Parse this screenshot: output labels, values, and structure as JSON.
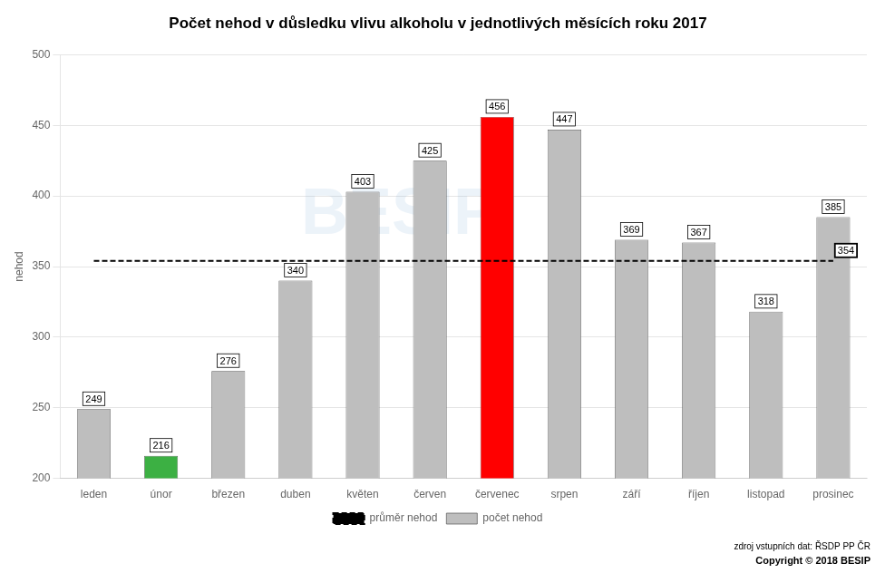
{
  "chart_data": {
    "type": "bar",
    "title": "Počet nehod v důsledku vlivu alkoholu v jednotlivých měsících roku 2017",
    "categories": [
      "leden",
      "únor",
      "březen",
      "duben",
      "květen",
      "červen",
      "červenec",
      "srpen",
      "září",
      "říjen",
      "listopad",
      "prosinec"
    ],
    "series": [
      {
        "name": "počet nehod",
        "type": "bar",
        "colors": [
          "#bebebe",
          "#3cb043",
          "#bebebe",
          "#bebebe",
          "#bebebe",
          "#bebebe",
          "#ff0000",
          "#bebebe",
          "#bebebe",
          "#bebebe",
          "#bebebe",
          "#bebebe"
        ],
        "values": [
          249,
          216,
          276,
          340,
          403,
          425,
          456,
          447,
          369,
          367,
          318,
          385
        ]
      },
      {
        "name": "průměr nehod",
        "type": "line",
        "line_style": "dashed",
        "color": "#000000",
        "values": [
          354,
          354,
          354,
          354,
          354,
          354,
          354,
          354,
          354,
          354,
          354,
          354
        ],
        "value_labels": [
          null,
          null,
          null,
          null,
          null,
          null,
          null,
          null,
          null,
          null,
          null,
          "354"
        ]
      }
    ],
    "ylabel": "nehod",
    "ylim": [
      200,
      500
    ],
    "yticks": [
      200,
      250,
      300,
      350,
      400,
      450,
      500
    ],
    "grid": true,
    "legend": "bottom",
    "data_labels": true,
    "annotations": [
      "BESIP",
      "zdroj vstupních dat: ŘSDP PP ČR",
      "Copyright © 2018 BESIP"
    ]
  }
}
